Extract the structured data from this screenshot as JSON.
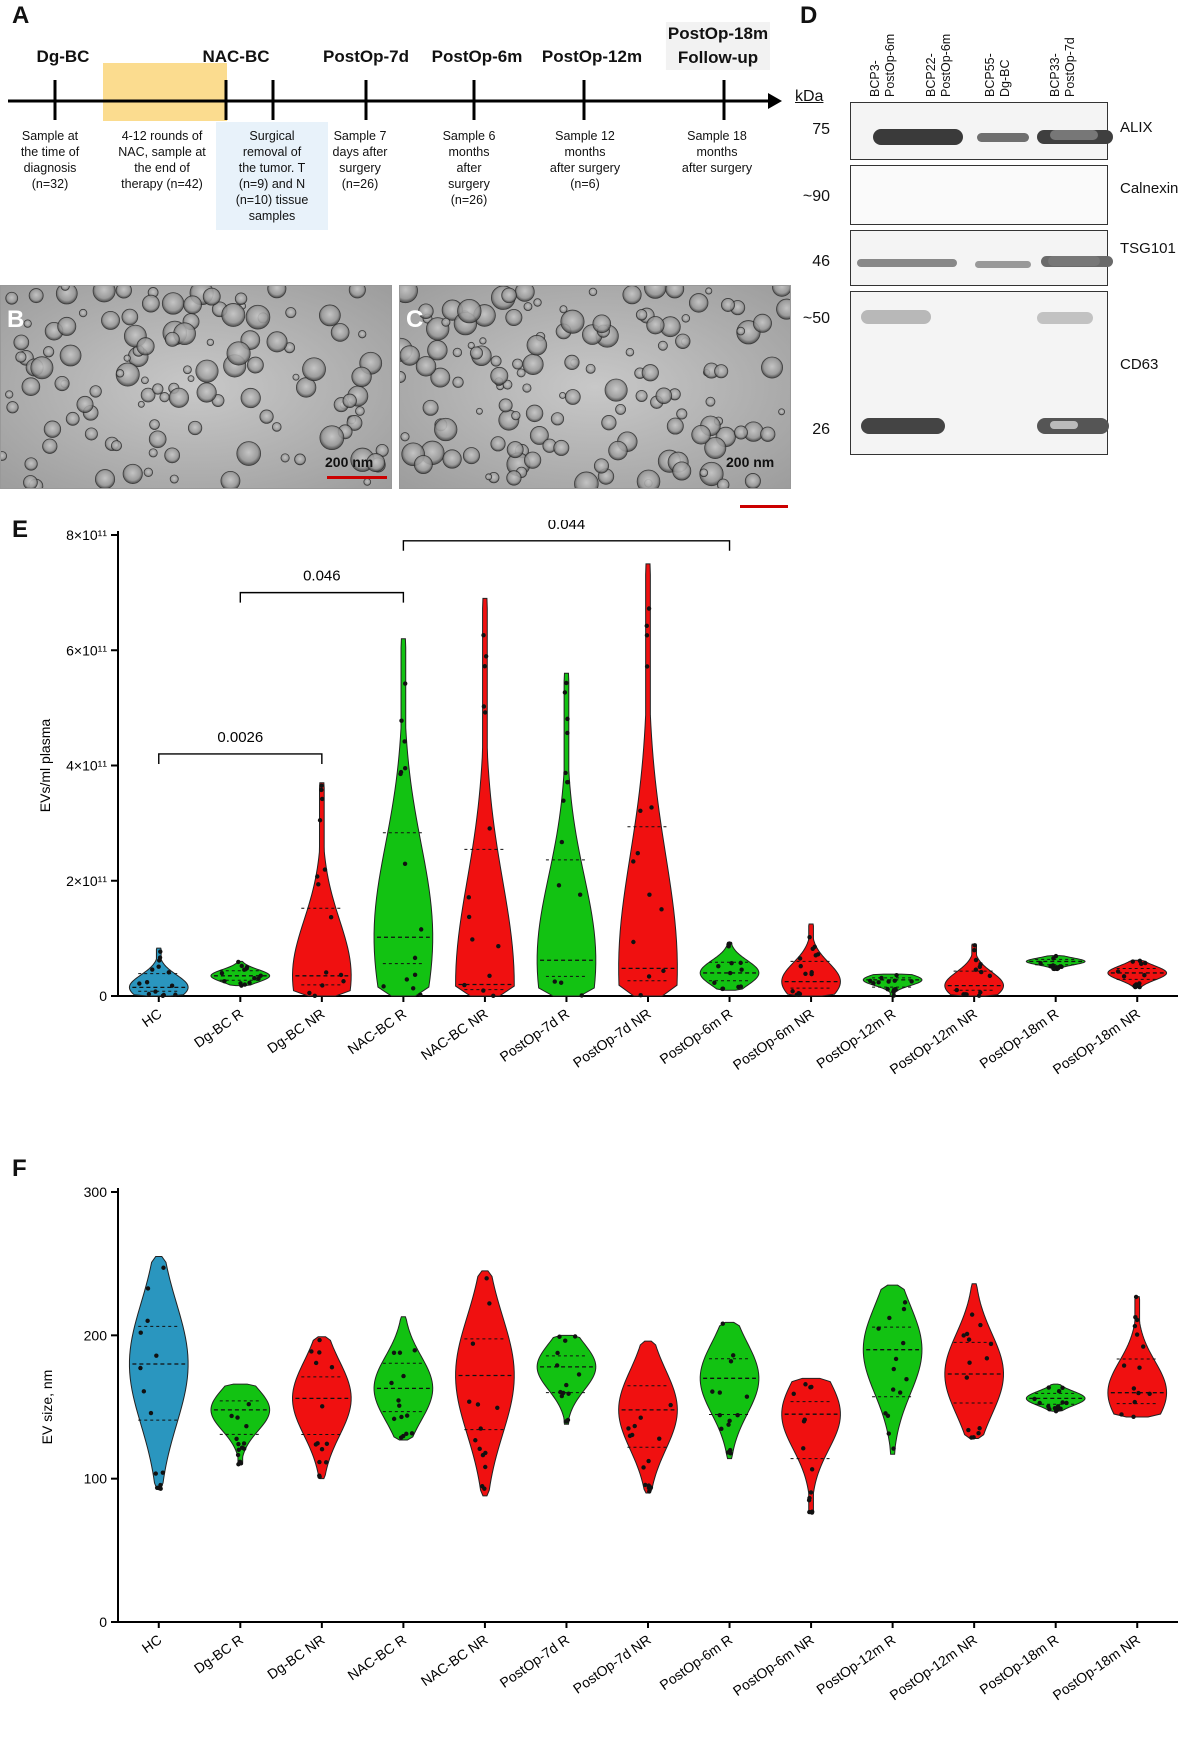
{
  "panels": {
    "a": "A",
    "b": "B",
    "c": "C",
    "d": "D",
    "e": "E",
    "f": "F"
  },
  "timeline": {
    "stages": [
      {
        "title": "Dg-BC",
        "desc": "Sample at\nthe time of\ndiagnosis\n(n=32)"
      },
      {
        "title": "",
        "desc": "4-12 rounds of\nNAC, sample at\nthe end of\ntherapy (n=42)"
      },
      {
        "title": "NAC-BC",
        "desc": ""
      },
      {
        "title": "",
        "desc": "Surgical\nremoval of\nthe tumor. T\n(n=9) and N\n(n=10) tissue\nsamples"
      },
      {
        "title": "PostOp-7d",
        "desc": "Sample 7\ndays after\nsurgery\n(n=26)"
      },
      {
        "title": "PostOp-6m",
        "desc": "Sample 6\nmonths\nafter\nsurgery\n(n=26)"
      },
      {
        "title": "PostOp-12m",
        "desc": "Sample 12\nmonths\nafter surgery\n(n=6)"
      },
      {
        "title": "PostOp-18m\nFollow-up",
        "desc": "Sample 18\nmonths\nafter surgery"
      }
    ]
  },
  "em": {
    "scale_b": "200 nm",
    "scale_c": "200 nm"
  },
  "western": {
    "kda_unit": "kDa",
    "lanes": [
      "BCP3-\nPostOp-6m",
      "BCP22-\nPostOp-6m",
      "BCP55-\nDg-BC",
      "BCP33-\nPostOp-7d"
    ],
    "blots": [
      {
        "protein": "ALIX",
        "markers": [
          "75"
        ]
      },
      {
        "protein": "Calnexin",
        "markers": [
          "~90"
        ]
      },
      {
        "protein": "TSG101",
        "markers": [
          "46"
        ]
      },
      {
        "protein": "CD63",
        "markers": [
          "~50",
          "26"
        ]
      }
    ]
  },
  "chart_data": [
    {
      "type": "violin",
      "panel": "E",
      "ylabel": "EVs/ml plasma",
      "ylim": [
        0,
        800000000000.0
      ],
      "yticks": [
        {
          "value": 0,
          "label": "0"
        },
        {
          "value": 200000000000.0,
          "label": "2×10¹¹"
        },
        {
          "value": 400000000000.0,
          "label": "4×10¹¹"
        },
        {
          "value": 600000000000.0,
          "label": "6×10¹¹"
        },
        {
          "value": 800000000000.0,
          "label": "8×10¹¹"
        }
      ],
      "categories": [
        "HC",
        "Dg-BC R",
        "Dg-BC NR",
        "NAC-BC R",
        "NAC-BC NR",
        "PostOp-7d R",
        "PostOp-7d NR",
        "PostOp-6m R",
        "PostOp-6m NR",
        "PostOp-12m R",
        "PostOp-12m NR",
        "PostOp-18m R",
        "PostOp-18m NR"
      ],
      "colors": [
        "#2a96bf",
        "#12c212",
        "#f01010",
        "#12c212",
        "#f01010",
        "#12c212",
        "#f01010",
        "#12c212",
        "#f01010",
        "#12c212",
        "#f01010",
        "#12c212",
        "#f01010"
      ],
      "ranges": [
        [
          0,
          83000000000.0
        ],
        [
          18000000000.0,
          60000000000.0
        ],
        [
          0,
          370000000000.0
        ],
        [
          0,
          620000000000.0
        ],
        [
          0,
          690000000000.0
        ],
        [
          0,
          560000000000.0
        ],
        [
          0,
          750000000000.0
        ],
        [
          10000000000.0,
          93000000000.0
        ],
        [
          0,
          125000000000.0
        ],
        [
          0,
          38000000000.0
        ],
        [
          0,
          90000000000.0
        ],
        [
          47000000000.0,
          70000000000.0
        ],
        [
          15000000000.0,
          62000000000.0
        ]
      ],
      "medians": [
        15000000000.0,
        35000000000.0,
        35000000000.0,
        102000000000.0,
        20000000000.0,
        62000000000.0,
        48000000000.0,
        40000000000.0,
        25000000000.0,
        28000000000.0,
        18000000000.0,
        60000000000.0,
        40000000000.0
      ],
      "brackets": [
        {
          "from": 0,
          "to": 2,
          "label": "0.0026",
          "y": 420000000000.0
        },
        {
          "from": 1,
          "to": 3,
          "label": "0.046",
          "y": 700000000000.0
        },
        {
          "from": 3,
          "to": 7,
          "label": "0.044",
          "y": 790000000000.0
        }
      ]
    },
    {
      "type": "violin",
      "panel": "F",
      "ylabel": "EV size, nm",
      "ylim": [
        0,
        300
      ],
      "yticks": [
        {
          "value": 0,
          "label": "0"
        },
        {
          "value": 100,
          "label": "100"
        },
        {
          "value": 200,
          "label": "200"
        },
        {
          "value": 300,
          "label": "300"
        }
      ],
      "categories": [
        "HC",
        "Dg-BC R",
        "Dg-BC NR",
        "NAC-BC R",
        "NAC-BC NR",
        "PostOp-7d R",
        "PostOp-7d NR",
        "PostOp-6m R",
        "PostOp-6m NR",
        "PostOp-12m R",
        "PostOp-12m NR",
        "PostOp-18m R",
        "PostOp-18m NR"
      ],
      "colors": [
        "#2a96bf",
        "#12c212",
        "#f01010",
        "#12c212",
        "#f01010",
        "#12c212",
        "#f01010",
        "#12c212",
        "#f01010",
        "#12c212",
        "#f01010",
        "#12c212",
        "#f01010"
      ],
      "ranges": [
        [
          93,
          255
        ],
        [
          110,
          166
        ],
        [
          100,
          199
        ],
        [
          127,
          213
        ],
        [
          88,
          245
        ],
        [
          138,
          200
        ],
        [
          90,
          196
        ],
        [
          114,
          209
        ],
        [
          76,
          170
        ],
        [
          117,
          235
        ],
        [
          128,
          236
        ],
        [
          147,
          166
        ],
        [
          143,
          227
        ]
      ],
      "medians": [
        180,
        148,
        156,
        163,
        172,
        178,
        148,
        170,
        145,
        190,
        173,
        156,
        160
      ]
    }
  ]
}
